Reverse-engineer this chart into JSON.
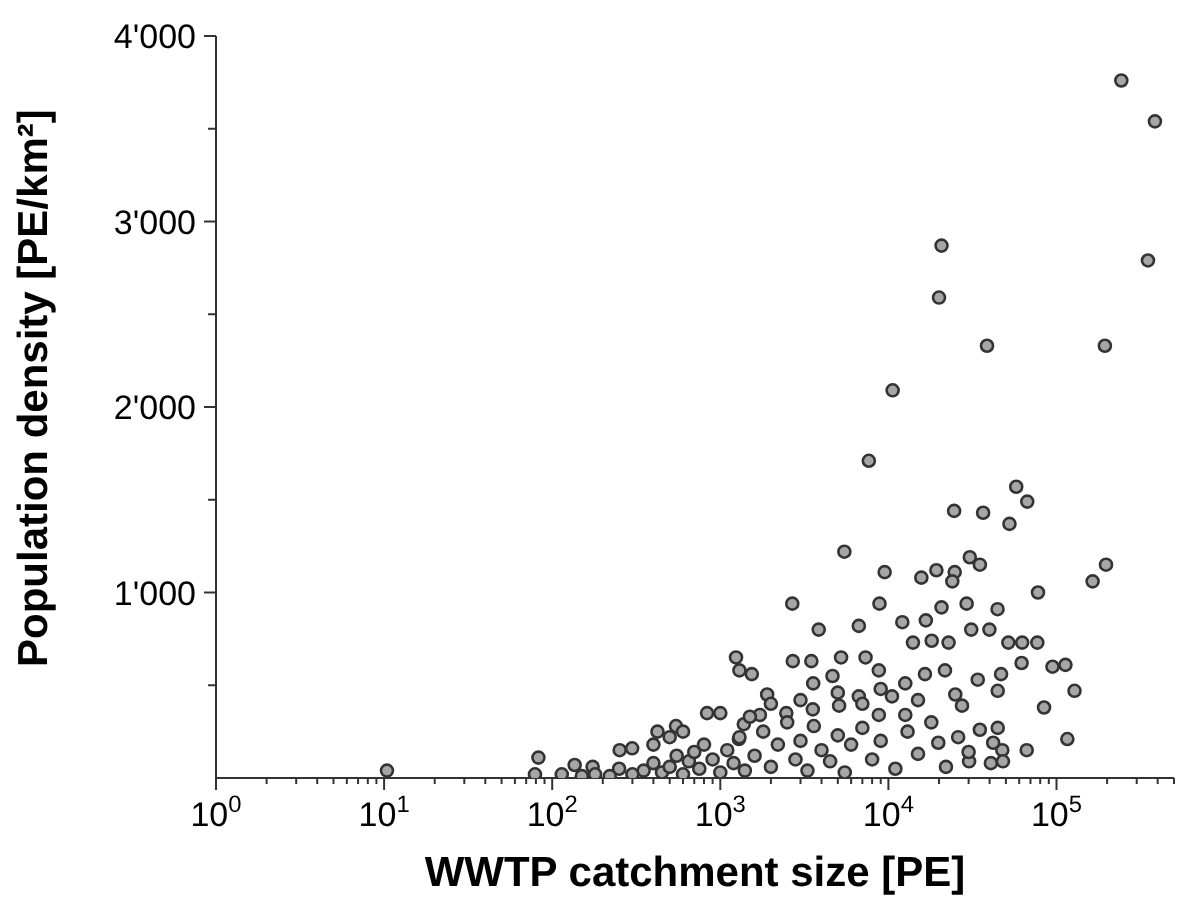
{
  "chart_data": {
    "type": "scatter",
    "xlabel": "WWTP catchment size [PE]",
    "ylabel": "Population density [PE/km²]",
    "log": "x",
    "marker": "circle",
    "grid": false,
    "legend": false,
    "xlim": [
      1,
      500000
    ],
    "ylim": [
      0,
      4000
    ],
    "xticks": [
      {
        "value": 1,
        "label": "10$^{0}$"
      },
      {
        "value": 2,
        "label": null
      },
      {
        "value": 3,
        "label": null
      },
      {
        "value": 4,
        "label": null
      },
      {
        "value": 5,
        "label": null
      },
      {
        "value": 6,
        "label": null
      },
      {
        "value": 7,
        "label": null
      },
      {
        "value": 8,
        "label": null
      },
      {
        "value": 9,
        "label": null
      },
      {
        "value": 10,
        "label": "10$^{1}$"
      },
      {
        "value": 20,
        "label": null
      },
      {
        "value": 30,
        "label": null
      },
      {
        "value": 40,
        "label": null
      },
      {
        "value": 50,
        "label": null
      },
      {
        "value": 60,
        "label": null
      },
      {
        "value": 70,
        "label": null
      },
      {
        "value": 80,
        "label": null
      },
      {
        "value": 90,
        "label": null
      },
      {
        "value": 100,
        "label": "10$^{2}$"
      },
      {
        "value": 200,
        "label": null
      },
      {
        "value": 300,
        "label": null
      },
      {
        "value": 400,
        "label": null
      },
      {
        "value": 500,
        "label": null
      },
      {
        "value": 600,
        "label": null
      },
      {
        "value": 700,
        "label": null
      },
      {
        "value": 800,
        "label": null
      },
      {
        "value": 900,
        "label": null
      },
      {
        "value": 1000,
        "label": "10$^{3}$"
      },
      {
        "value": 2000,
        "label": null
      },
      {
        "value": 3000,
        "label": null
      },
      {
        "value": 4000,
        "label": null
      },
      {
        "value": 5000,
        "label": null
      },
      {
        "value": 6000,
        "label": null
      },
      {
        "value": 7000,
        "label": null
      },
      {
        "value": 8000,
        "label": null
      },
      {
        "value": 9000,
        "label": null
      },
      {
        "value": 10000,
        "label": "10$^{4}$"
      },
      {
        "value": 20000,
        "label": null
      },
      {
        "value": 30000,
        "label": null
      },
      {
        "value": 40000,
        "label": null
      },
      {
        "value": 50000,
        "label": null
      },
      {
        "value": 60000,
        "label": null
      },
      {
        "value": 70000,
        "label": null
      },
      {
        "value": 80000,
        "label": null
      },
      {
        "value": 90000,
        "label": null
      },
      {
        "value": 100000,
        "label": "10$^{5}$"
      },
      {
        "value": 200000,
        "label": null
      },
      {
        "value": 300000,
        "label": null
      },
      {
        "value": 400000,
        "label": null
      },
      {
        "value": 500000,
        "label": null
      }
    ],
    "yticks": [
      {
        "value": 500,
        "label": null
      },
      {
        "value": 1000,
        "label": "1'000"
      },
      {
        "value": 1500,
        "label": null
      },
      {
        "value": 2000,
        "label": "2'000"
      },
      {
        "value": 2500,
        "label": null
      },
      {
        "value": 3000,
        "label": "3'000"
      },
      {
        "value": 3500,
        "label": null
      },
      {
        "value": 4000,
        "label": "4'000"
      }
    ],
    "series": [
      {
        "color": "#a6a6a6",
        "x": [
          243000,
          385000,
          20700,
          20000,
          350000,
          38600,
          194000,
          10600,
          7650,
          57600,
          67000,
          24600,
          36600,
          52500,
          5470,
          197000,
          164000,
          77600,
          9500,
          19300,
          24800,
          30500,
          35000,
          24000,
          15700,
          2680,
          8850,
          29200,
          44600,
          12100,
          6670,
          3850,
          31100,
          39900,
          20700,
          16700,
          51700,
          62500,
          76900,
          113000,
          94700,
          128000,
          84300,
          116000,
          66500,
          62000,
          46800,
          14000,
          18100,
          22800,
          8770,
          7310,
          5230,
          3480,
          2700,
          1540,
          1240,
          1300,
          1900,
          3570,
          4650,
          6670,
          10500,
          12600,
          16500,
          21700,
          34000,
          44700,
          27400,
          44700,
          47600,
          30200,
          40700,
          19800,
          12600,
          8770,
          5090,
          3550,
          2470,
          1720,
          1380,
          834,
          1290,
          545,
          423,
          252,
          299,
          82.8,
          10.4,
          136,
          174,
          79,
          114,
          300,
          350,
          400,
          450,
          500,
          550,
          600,
          650,
          700,
          750,
          800,
          900,
          1000,
          1100,
          1200,
          1300,
          1400,
          1600,
          1800,
          2000,
          2200,
          2500,
          2800,
          3000,
          3300,
          3600,
          4000,
          4500,
          5000,
          5500,
          6000,
          7000,
          8000,
          9000,
          11000,
          13000,
          15000,
          18000,
          22000,
          26000,
          30000,
          35000,
          42000,
          48000,
          250,
          220,
          180,
          150,
          400,
          500,
          600,
          2000,
          3000,
          5000,
          7000,
          9000,
          15000,
          25000,
          1500,
          1000
        ],
        "values": [
          3760,
          3540,
          2870,
          2590,
          2790,
          2330,
          2330,
          2090,
          1710,
          1570,
          1490,
          1440,
          1430,
          1370,
          1220,
          1150,
          1060,
          1000,
          1110,
          1120,
          1110,
          1190,
          1150,
          1060,
          1080,
          940,
          940,
          940,
          910,
          840,
          820,
          800,
          800,
          800,
          920,
          850,
          730,
          730,
          730,
          610,
          600,
          470,
          380,
          210,
          150,
          620,
          560,
          730,
          740,
          730,
          580,
          650,
          650,
          630,
          630,
          560,
          650,
          580,
          450,
          510,
          550,
          440,
          440,
          510,
          560,
          580,
          530,
          470,
          390,
          270,
          150,
          90,
          80,
          190,
          340,
          340,
          390,
          370,
          350,
          340,
          290,
          350,
          210,
          280,
          250,
          150,
          160,
          110,
          40,
          70,
          60,
          20,
          20,
          20,
          40,
          80,
          30,
          60,
          120,
          20,
          90,
          140,
          50,
          180,
          100,
          30,
          150,
          80,
          220,
          40,
          120,
          250,
          60,
          180,
          300,
          100,
          200,
          40,
          280,
          150,
          90,
          230,
          30,
          180,
          270,
          100,
          200,
          50,
          250,
          130,
          300,
          60,
          220,
          140,
          260,
          190,
          90,
          50,
          10,
          20,
          10,
          180,
          220,
          250,
          400,
          420,
          460,
          400,
          480,
          420,
          450,
          330,
          350
        ]
      }
    ]
  }
}
